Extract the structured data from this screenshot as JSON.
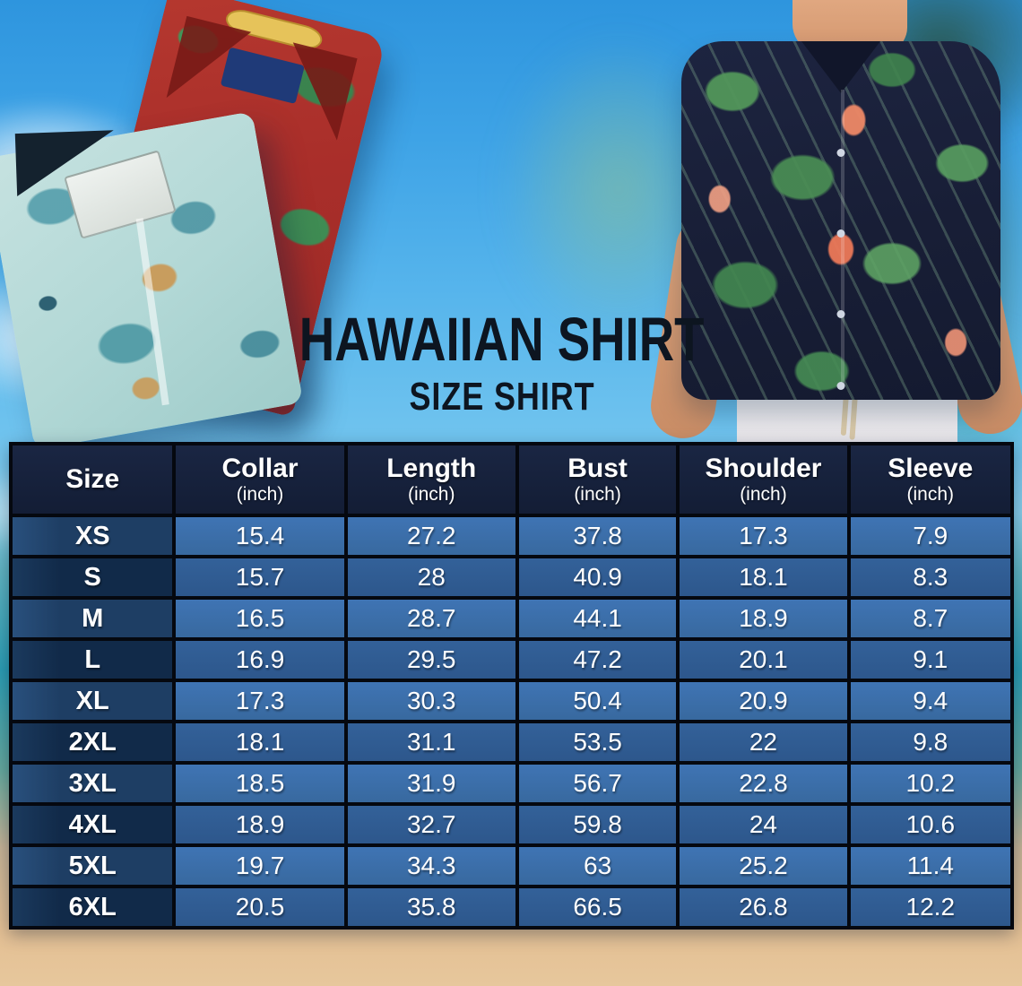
{
  "title": {
    "main": "HAWAIIAN SHIRT",
    "subtitle": "SIZE SHIRT"
  },
  "size_table": {
    "columns": [
      {
        "label": "Size",
        "unit": ""
      },
      {
        "label": "Collar",
        "unit": "(inch)"
      },
      {
        "label": "Length",
        "unit": "(inch)"
      },
      {
        "label": "Bust",
        "unit": "(inch)"
      },
      {
        "label": "Shoulder",
        "unit": "(inch)"
      },
      {
        "label": "Sleeve",
        "unit": "(inch)"
      }
    ],
    "rows": [
      {
        "size": "XS",
        "values": [
          "15.4",
          "27.2",
          "37.8",
          "17.3",
          "7.9"
        ]
      },
      {
        "size": "S",
        "values": [
          "15.7",
          "28",
          "40.9",
          "18.1",
          "8.3"
        ]
      },
      {
        "size": "M",
        "values": [
          "16.5",
          "28.7",
          "44.1",
          "18.9",
          "8.7"
        ]
      },
      {
        "size": "L",
        "values": [
          "16.9",
          "29.5",
          "47.2",
          "20.1",
          "9.1"
        ]
      },
      {
        "size": "XL",
        "values": [
          "17.3",
          "30.3",
          "50.4",
          "20.9",
          "9.4"
        ]
      },
      {
        "size": "2XL",
        "values": [
          "18.1",
          "31.1",
          "53.5",
          "22",
          "9.8"
        ]
      },
      {
        "size": "3XL",
        "values": [
          "18.5",
          "31.9",
          "56.7",
          "22.8",
          "10.2"
        ]
      },
      {
        "size": "4XL",
        "values": [
          "18.9",
          "32.7",
          "59.8",
          "24",
          "10.6"
        ]
      },
      {
        "size": "5XL",
        "values": [
          "19.7",
          "34.3",
          "63",
          "25.2",
          "11.4"
        ]
      },
      {
        "size": "6XL",
        "values": [
          "20.5",
          "35.8",
          "66.5",
          "26.8",
          "12.2"
        ]
      }
    ],
    "colors": {
      "header_bg": "#15203a",
      "size_cell_odd": "#1e3e64",
      "size_cell_even": "#112a49",
      "data_cell_odd": "#3a6dac",
      "data_cell_even": "#305d99",
      "border": "#05080f",
      "text": "#ffffff"
    }
  },
  "chart_data": {
    "type": "table",
    "title": "HAWAIIAN SHIRT SIZE SHIRT",
    "columns": [
      "Size",
      "Collar (inch)",
      "Length (inch)",
      "Bust (inch)",
      "Shoulder (inch)",
      "Sleeve (inch)"
    ],
    "rows": [
      [
        "XS",
        15.4,
        27.2,
        37.8,
        17.3,
        7.9
      ],
      [
        "S",
        15.7,
        28,
        40.9,
        18.1,
        8.3
      ],
      [
        "M",
        16.5,
        28.7,
        44.1,
        18.9,
        8.7
      ],
      [
        "L",
        16.9,
        29.5,
        47.2,
        20.1,
        9.1
      ],
      [
        "XL",
        17.3,
        30.3,
        50.4,
        20.9,
        9.4
      ],
      [
        "2XL",
        18.1,
        31.1,
        53.5,
        22,
        9.8
      ],
      [
        "3XL",
        18.5,
        31.9,
        56.7,
        22.8,
        10.2
      ],
      [
        "4XL",
        18.9,
        32.7,
        59.8,
        24,
        10.6
      ],
      [
        "5XL",
        19.7,
        34.3,
        63,
        25.2,
        11.4
      ],
      [
        "6XL",
        20.5,
        35.8,
        66.5,
        26.8,
        12.2
      ]
    ]
  },
  "scene_colors": {
    "sky_top": "#2e95de",
    "sky_light": "#6fc3ee",
    "sea_teal": "#2b9cb2",
    "sand": "#e3bf93",
    "title_text": "#0d1520",
    "red_shirt": "#b5382f",
    "teal_shirt": "#b2d8d6",
    "man_shirt_navy": "#181e36",
    "flamingo": "#ee8866",
    "leaf_green": "#4a8e54"
  }
}
